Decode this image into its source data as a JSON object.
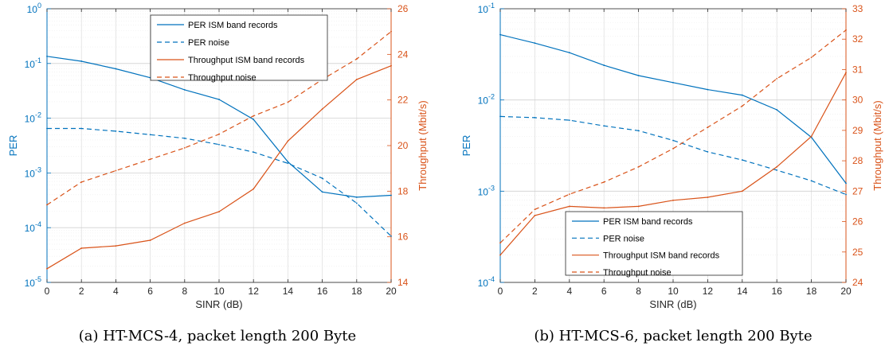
{
  "colors": {
    "per": "#0072BD",
    "throughput": "#D95319",
    "axis": "#262626",
    "grid": "#e6e6e6"
  },
  "chart_data": [
    {
      "type": "line",
      "caption": "(a) HT-MCS-4, packet length 200 Byte",
      "xlabel": "SINR (dB)",
      "ylabel_left": "PER",
      "ylabel_right": "Throughput (Mbit/s)",
      "x": [
        0,
        2,
        4,
        6,
        8,
        10,
        12,
        14,
        16,
        18,
        20
      ],
      "xticks": [
        "0",
        "2",
        "4",
        "6",
        "8",
        "10",
        "12",
        "14",
        "16",
        "18",
        "20"
      ],
      "xlim": [
        0,
        20
      ],
      "ylim_left": [
        1e-05,
        1
      ],
      "yscale_left": "log",
      "yticks_left": [
        {
          "value": 1,
          "label": "10",
          "exp": "0"
        },
        {
          "value": 0.1,
          "label": "10",
          "exp": "-1"
        },
        {
          "value": 0.01,
          "label": "10",
          "exp": "-2"
        },
        {
          "value": 0.001,
          "label": "10",
          "exp": "-3"
        },
        {
          "value": 0.0001,
          "label": "10",
          "exp": "-4"
        },
        {
          "value": 1e-05,
          "label": "10",
          "exp": "-5"
        }
      ],
      "ylim_right": [
        14,
        26
      ],
      "yticks_right": [
        "14",
        "16",
        "18",
        "20",
        "22",
        "24",
        "26"
      ],
      "grid": true,
      "legend_position": "top-center",
      "series": [
        {
          "name": "PER ISM band records",
          "axis": "left",
          "style": "solid",
          "color": "per",
          "values": [
            0.135,
            0.11,
            0.08,
            0.055,
            0.033,
            0.022,
            0.0095,
            0.0016,
            0.00045,
            0.00036,
            0.00039
          ]
        },
        {
          "name": "PER noise",
          "axis": "left",
          "style": "dashed",
          "color": "per",
          "values": [
            0.0065,
            0.0065,
            0.0058,
            0.005,
            0.0043,
            0.0033,
            0.0024,
            0.0015,
            0.0008,
            0.00028,
            7e-05
          ]
        },
        {
          "name": "Throughput ISM band records",
          "axis": "right",
          "style": "solid",
          "color": "throughput",
          "values": [
            14.6,
            15.5,
            15.6,
            15.85,
            16.6,
            17.1,
            18.1,
            20.2,
            21.6,
            22.9,
            23.5
          ]
        },
        {
          "name": "Throughput noise",
          "axis": "right",
          "style": "dashed",
          "color": "throughput",
          "values": [
            17.4,
            18.4,
            18.9,
            19.4,
            19.9,
            20.5,
            21.3,
            21.9,
            22.9,
            23.8,
            25.0
          ]
        }
      ]
    },
    {
      "type": "line",
      "caption": "(b) HT-MCS-6, packet length 200 Byte",
      "xlabel": "SINR (dB)",
      "ylabel_left": "PER",
      "ylabel_right": "Throughput (Mbit/s)",
      "x": [
        0,
        2,
        4,
        6,
        8,
        10,
        12,
        14,
        16,
        18,
        20
      ],
      "xticks": [
        "0",
        "2",
        "4",
        "6",
        "8",
        "10",
        "12",
        "14",
        "16",
        "18",
        "20"
      ],
      "xlim": [
        0,
        20
      ],
      "ylim_left": [
        0.0001,
        0.1
      ],
      "yscale_left": "log",
      "yticks_left": [
        {
          "value": 0.1,
          "label": "10",
          "exp": "-1"
        },
        {
          "value": 0.01,
          "label": "10",
          "exp": "-2"
        },
        {
          "value": 0.001,
          "label": "10",
          "exp": "-3"
        },
        {
          "value": 0.0001,
          "label": "10",
          "exp": "-4"
        }
      ],
      "ylim_right": [
        24,
        33
      ],
      "yticks_right": [
        "24",
        "25",
        "26",
        "27",
        "28",
        "29",
        "30",
        "31",
        "32",
        "33"
      ],
      "grid": true,
      "legend_position": "bottom-center",
      "series": [
        {
          "name": "PER ISM band records",
          "axis": "left",
          "style": "solid",
          "color": "per",
          "values": [
            0.052,
            0.042,
            0.033,
            0.024,
            0.0185,
            0.0155,
            0.013,
            0.0113,
            0.0078,
            0.0039,
            0.00122
          ]
        },
        {
          "name": "PER noise",
          "axis": "left",
          "style": "dashed",
          "color": "per",
          "values": [
            0.0066,
            0.0064,
            0.006,
            0.0052,
            0.0046,
            0.0036,
            0.0027,
            0.0022,
            0.0017,
            0.0013,
            0.00092
          ]
        },
        {
          "name": "Throughput ISM band records",
          "axis": "right",
          "style": "solid",
          "color": "throughput",
          "values": [
            24.9,
            26.2,
            26.5,
            26.45,
            26.5,
            26.7,
            26.8,
            27.0,
            27.8,
            28.8,
            30.9
          ]
        },
        {
          "name": "Throughput noise",
          "axis": "right",
          "style": "dashed",
          "color": "throughput",
          "values": [
            25.3,
            26.4,
            26.9,
            27.3,
            27.8,
            28.4,
            29.1,
            29.8,
            30.7,
            31.4,
            32.3
          ]
        }
      ]
    }
  ]
}
